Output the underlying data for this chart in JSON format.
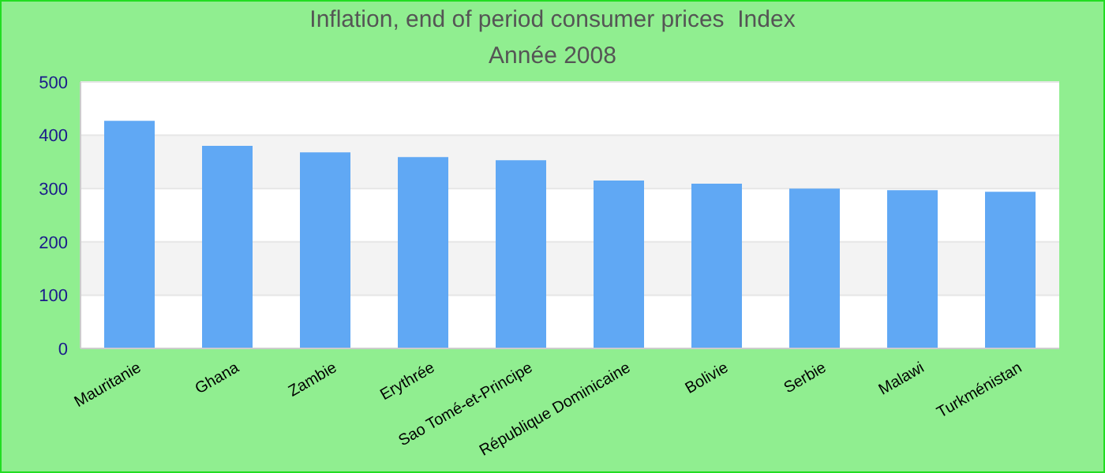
{
  "chart_data": {
    "type": "bar",
    "title": "Inflation, end of period consumer prices  Index",
    "subtitle": "Année 2008",
    "categories": [
      "Mauritanie",
      "Ghana",
      "Zambie",
      "Erythrée",
      "Sao Tomé-et-Principe",
      "République Dominicaine",
      "Bolivie",
      "Serbie",
      "Malawi",
      "Turkménistan"
    ],
    "values": [
      427,
      380,
      368,
      359,
      353,
      315,
      309,
      300,
      297,
      294
    ],
    "color": "#60a8f4",
    "ylim": [
      0,
      500
    ],
    "yticks": [
      0,
      100,
      200,
      300,
      400,
      500
    ],
    "grid": "y"
  }
}
